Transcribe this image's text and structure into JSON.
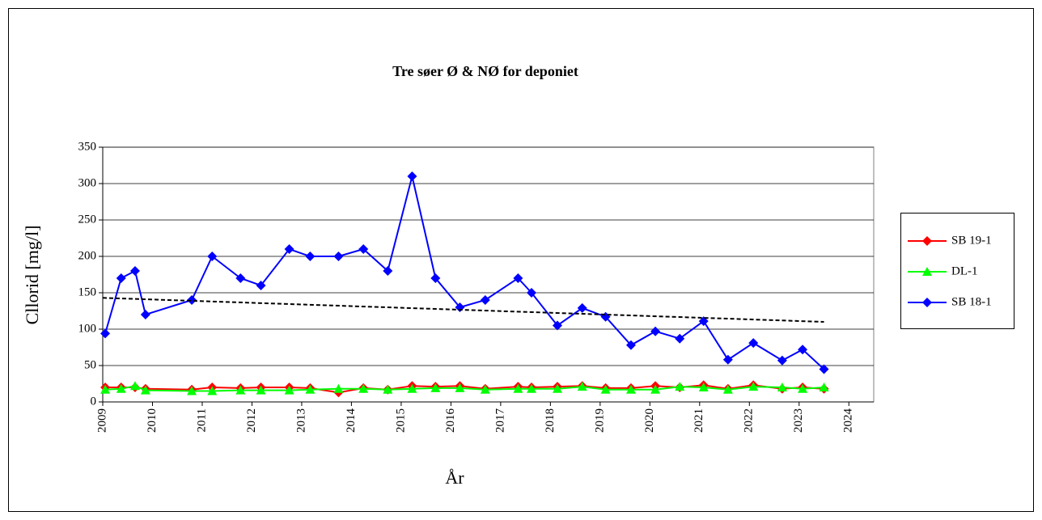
{
  "chart_data": {
    "type": "line",
    "title": "Tre søer Ø & NØ for deponiet",
    "x_label": "År",
    "y_label": "Cllorid [mg/l]",
    "x": [
      2009.05,
      2009.37,
      2009.65,
      2009.86,
      2010.79,
      2011.2,
      2011.77,
      2012.18,
      2012.75,
      2013.17,
      2013.74,
      2014.24,
      2014.73,
      2015.22,
      2015.69,
      2016.18,
      2016.69,
      2017.35,
      2017.62,
      2018.14,
      2018.64,
      2019.11,
      2019.62,
      2020.11,
      2020.6,
      2021.08,
      2021.57,
      2022.08,
      2022.66,
      2023.07,
      2023.5
    ],
    "series": [
      {
        "name": "SB 19-1",
        "color": "#ff0000",
        "marker": "diamond",
        "values": [
          20,
          20,
          20,
          18,
          17,
          20,
          19,
          20,
          20,
          19,
          13,
          19,
          17,
          22,
          21,
          22,
          18,
          21,
          20,
          21,
          22,
          19,
          19,
          22,
          20,
          23,
          18,
          23,
          18,
          20,
          18
        ]
      },
      {
        "name": "DL-1",
        "color": "#00ff00",
        "marker": "triangle",
        "values": [
          17,
          18,
          22,
          16,
          15,
          15,
          16,
          16,
          16,
          17,
          18,
          18,
          17,
          18,
          19,
          19,
          17,
          18,
          18,
          18,
          21,
          17,
          17,
          17,
          21,
          20,
          17,
          21,
          20,
          18,
          20
        ]
      },
      {
        "name": "SB 18-1",
        "color": "#0000ff",
        "marker": "diamond",
        "values": [
          94,
          170,
          180,
          120,
          140,
          200,
          170,
          160,
          210,
          200,
          200,
          210,
          180,
          310,
          170,
          130,
          140,
          170,
          150,
          105,
          129,
          117,
          78,
          97,
          87,
          111,
          58,
          81,
          57,
          72,
          45
        ]
      }
    ],
    "trendline": {
      "x": [
        2009,
        2023.5
      ],
      "values": [
        143,
        110
      ],
      "color": "#000000"
    },
    "xlim": [
      2009,
      2024.5
    ],
    "xticks": [
      2009,
      2010,
      2011,
      2012,
      2013,
      2014,
      2015,
      2016,
      2017,
      2018,
      2019,
      2020,
      2021,
      2022,
      2023,
      2024
    ],
    "ylim": [
      0,
      350
    ],
    "yticks": [
      0,
      50,
      100,
      150,
      200,
      250,
      300,
      350
    ],
    "grid": true
  }
}
